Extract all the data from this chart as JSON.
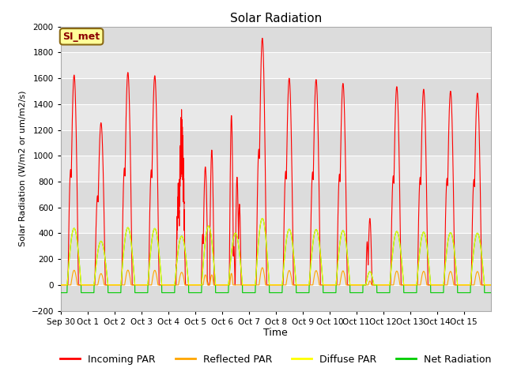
{
  "title": "Solar Radiation",
  "xlabel": "Time",
  "ylabel": "Solar Radiation (W/m2 or um/m2/s)",
  "ylim": [
    -200,
    2000
  ],
  "yticks": [
    -200,
    0,
    200,
    400,
    600,
    800,
    1000,
    1200,
    1400,
    1600,
    1800,
    2000
  ],
  "annotation_text": "SI_met",
  "annotation_color": "#8B0000",
  "annotation_facecolor": "#FFFF99",
  "annotation_edgecolor": "#8B6914",
  "num_days": 16,
  "series": {
    "incoming_par": {
      "color": "#FF0000",
      "label": "Incoming PAR",
      "linewidth": 0.8
    },
    "reflected_par": {
      "color": "#FFA500",
      "label": "Reflected PAR",
      "linewidth": 0.8
    },
    "diffuse_par": {
      "color": "#FFFF00",
      "label": "Diffuse PAR",
      "linewidth": 0.8
    },
    "net_radiation": {
      "color": "#00CC00",
      "label": "Net Radiation",
      "linewidth": 0.8
    }
  },
  "axes_facecolor": "#E8E8E8",
  "grid_color": "#FFFFFF",
  "band_colors": [
    "#DCDCDC",
    "#E8E8E8"
  ],
  "xtick_labels": [
    "Sep 30",
    "Oct 1",
    "Oct 2",
    "Oct 3",
    "Oct 4",
    "Oct 5",
    "Oct 6",
    "Oct 7",
    "Oct 8",
    "Oct 9",
    "Oct 10",
    "Oct 11",
    "Oct 12",
    "Oct 13",
    "Oct 14",
    "Oct 15"
  ],
  "incoming_peaks": [
    1625,
    1255,
    1645,
    1620,
    1400,
    1305,
    1490,
    1910,
    1600,
    1590,
    1560,
    515,
    1535,
    1515,
    1500,
    1485
  ],
  "peak_day_type": [
    0,
    0,
    0,
    0,
    1,
    2,
    3,
    0,
    0,
    0,
    0,
    4,
    0,
    0,
    0,
    0
  ],
  "night_net": -60
}
